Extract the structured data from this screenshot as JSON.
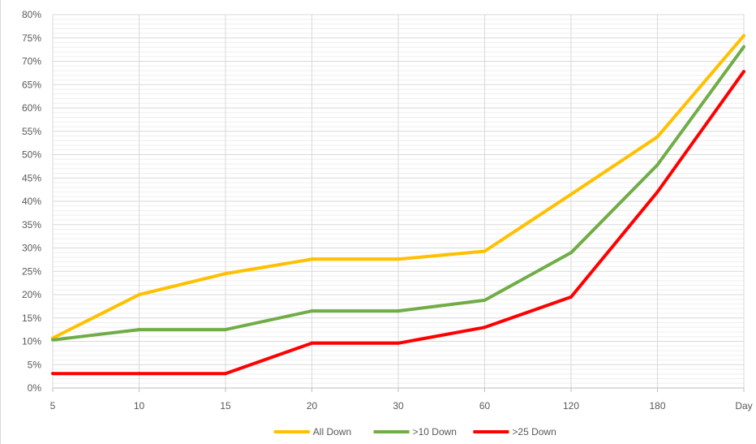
{
  "chart_data": {
    "type": "line",
    "title": "",
    "xlabel": "",
    "ylabel": "",
    "categories": [
      "5",
      "10",
      "15",
      "20",
      "30",
      "60",
      "120",
      "180",
      "Day"
    ],
    "y_ticks": [
      "0%",
      "5%",
      "10%",
      "15%",
      "20%",
      "25%",
      "30%",
      "35%",
      "40%",
      "45%",
      "50%",
      "55%",
      "60%",
      "65%",
      "70%",
      "75%",
      "80%"
    ],
    "ylim": [
      0,
      80
    ],
    "y_unit": "%",
    "grid": {
      "major": true,
      "minor": true,
      "vertical": true
    },
    "legend_position": "bottom",
    "series": [
      {
        "name": "All Down",
        "color": "#FFC000",
        "values": [
          10.7,
          20,
          24.5,
          27.6,
          27.6,
          29.3,
          41.5,
          53.8,
          75.5
        ]
      },
      {
        "name": ">10 Down",
        "color": "#70AD47",
        "values": [
          10.3,
          12.5,
          12.5,
          16.5,
          16.5,
          18.8,
          29.0,
          47.8,
          73.1
        ]
      },
      {
        "name": ">25 Down",
        "color": "#FF0000",
        "values": [
          3.1,
          3.1,
          3.1,
          9.6,
          9.6,
          13.0,
          19.5,
          42.0,
          67.8
        ]
      }
    ]
  }
}
